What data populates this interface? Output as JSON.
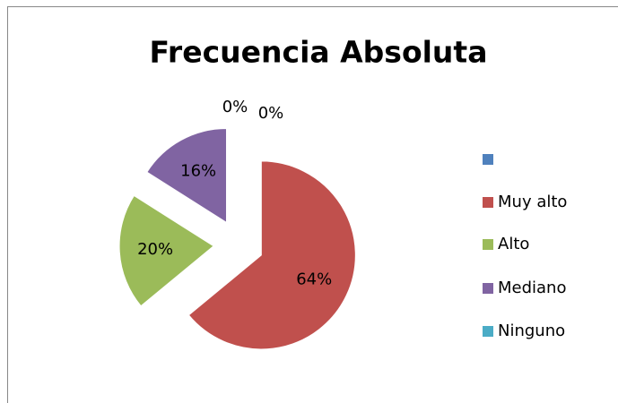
{
  "chart_data": {
    "type": "pie",
    "title": "Frecuencia Absoluta",
    "categories": [
      null,
      "Muy alto",
      "Alto",
      "Mediano",
      "Ninguno"
    ],
    "values": [
      0,
      64,
      20,
      16,
      0
    ],
    "value_labels": [
      "0%",
      "64%",
      "20%",
      "16%",
      "0%"
    ],
    "colors": [
      "#4f81bd",
      "#c0504d",
      "#9bbb59",
      "#8064a2",
      "#4bacc6"
    ],
    "legend": "right"
  }
}
